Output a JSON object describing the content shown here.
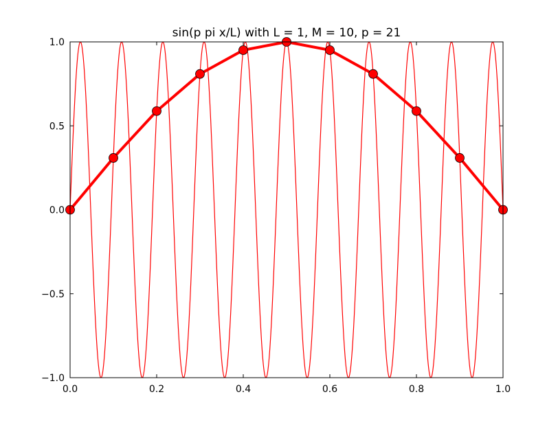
{
  "chart_data": {
    "type": "line",
    "title": "sin(p pi x/L) with L = 1, M = 10, p = 21",
    "xlabel": "",
    "ylabel": "",
    "xlim": [
      0.0,
      1.0
    ],
    "ylim": [
      -1.0,
      1.0
    ],
    "grid": false,
    "legend": "none",
    "x_ticks": [
      0.0,
      0.2,
      0.4,
      0.6,
      0.8,
      1.0
    ],
    "x_tick_labels": [
      "0.0",
      "0.2",
      "0.4",
      "0.6",
      "0.8",
      "1.0"
    ],
    "y_ticks": [
      -1.0,
      -0.5,
      0.0,
      0.5,
      1.0
    ],
    "y_tick_labels": [
      "−1.0",
      "−0.5",
      "0.0",
      "0.5",
      "1.0"
    ],
    "series": [
      {
        "kind": "function",
        "expression": "sin(21*pi*x)",
        "p": 21,
        "L": 1,
        "x_range": [
          0.0,
          1.0
        ],
        "color": "#ff0000",
        "line_style": "thin"
      },
      {
        "kind": "sampled",
        "x": [
          0.0,
          0.1,
          0.2,
          0.3,
          0.4,
          0.5,
          0.6,
          0.7,
          0.8,
          0.9,
          1.0
        ],
        "y": [
          0.0,
          0.309,
          0.588,
          0.809,
          0.951,
          1.0,
          0.951,
          0.809,
          0.588,
          0.309,
          0.0
        ],
        "color": "#ff0000",
        "line_style": "thick",
        "marker": "circle",
        "marker_face": "#ff0000",
        "marker_edge": "#000000"
      }
    ]
  }
}
